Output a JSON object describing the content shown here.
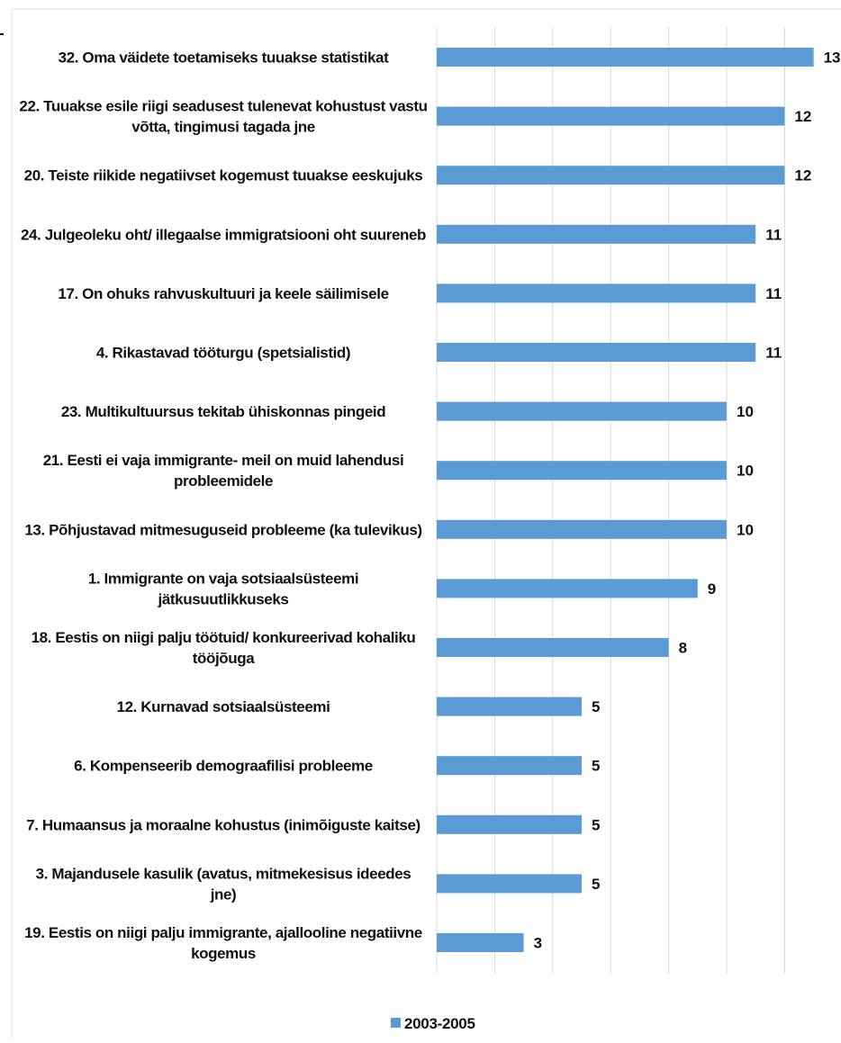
{
  "chart_data": {
    "type": "bar",
    "orientation": "horizontal",
    "categories": [
      [
        "32. Oma väidete toetamiseks tuuakse statistikat"
      ],
      [
        "22. Tuuakse esile riigi seadusest tulenevat kohustust vastu",
        "võtta, tingimusi tagada jne"
      ],
      [
        "20. Teiste riikide negatiivset kogemust tuuakse eeskujuks"
      ],
      [
        "24. Julgeoleku oht/ illegaalse immigratsiooni oht suureneb"
      ],
      [
        "17. On ohuks rahvuskultuuri ja keele säilimisele"
      ],
      [
        "4.       Rikastavad tööturgu (spetsialistid)"
      ],
      [
        "23. Multikultuursus tekitab ühiskonnas pingeid"
      ],
      [
        "21. Eesti ei vaja immigrante- meil on muid lahendusi",
        "probleemidele"
      ],
      [
        "13. Põhjustavad mitmesuguseid probleeme (ka tulevikus)"
      ],
      [
        "1.       Immigrante on vaja sotsiaalsüsteemi",
        "jätkusuutlikkuseks"
      ],
      [
        "18. Eestis on niigi palju töötuid/ konkureerivad kohaliku",
        "tööjõuga"
      ],
      [
        "12. Kurnavad sotsiaalsüsteemi"
      ],
      [
        "6.       Kompenseerib demograafilisi probleeme"
      ],
      [
        "7.       Humaansus ja moraalne kohustus (inimõiguste kaitse)"
      ],
      [
        "3.       Majandusele kasulik (avatus, mitmekesisus ideedes",
        "jne)"
      ],
      [
        "19. Eestis on niigi palju immigrante, ajallooline negatiivne",
        "kogemus"
      ]
    ],
    "series": [
      {
        "name": "2003-2005",
        "values": [
          13,
          12,
          12,
          11,
          11,
          11,
          10,
          10,
          10,
          9,
          8,
          5,
          5,
          5,
          5,
          3
        ]
      }
    ],
    "xlim": [
      0,
      14
    ],
    "grid": true,
    "legend_position": "bottom",
    "colors": {
      "bar": "#5B9BD5",
      "gridline": "#D9D9D9",
      "text": "#111111"
    }
  }
}
